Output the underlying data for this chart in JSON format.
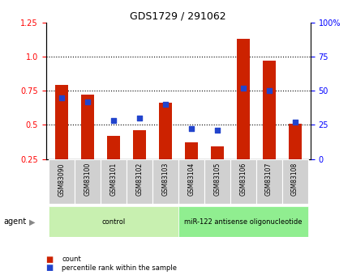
{
  "title": "GDS1729 / 291062",
  "samples": [
    "GSM83090",
    "GSM83100",
    "GSM83101",
    "GSM83102",
    "GSM83103",
    "GSM83104",
    "GSM83105",
    "GSM83106",
    "GSM83107",
    "GSM83108"
  ],
  "red_values": [
    0.79,
    0.72,
    0.42,
    0.46,
    0.66,
    0.37,
    0.34,
    1.13,
    0.97,
    0.51
  ],
  "blue_values": [
    45,
    42,
    28,
    30,
    40,
    22,
    21,
    52,
    50,
    27
  ],
  "ylim_left": [
    0.25,
    1.25
  ],
  "ylim_right": [
    0,
    100
  ],
  "yticks_left": [
    0.25,
    0.5,
    0.75,
    1.0,
    1.25
  ],
  "yticks_right": [
    0,
    25,
    50,
    75,
    100
  ],
  "ytick_labels_right": [
    "0",
    "25",
    "50",
    "75",
    "100%"
  ],
  "groups": [
    {
      "label": "control",
      "start": 0,
      "end": 5,
      "color": "#c8f0b0"
    },
    {
      "label": "miR-122 antisense oligonucleotide",
      "start": 5,
      "end": 10,
      "color": "#90ee90"
    }
  ],
  "red_color": "#cc2200",
  "blue_color": "#2244cc",
  "bar_width": 0.5,
  "agent_label": "agent",
  "legend_items": [
    {
      "label": "count",
      "color": "#cc2200"
    },
    {
      "label": "percentile rank within the sample",
      "color": "#2244cc"
    }
  ],
  "background_color": "#ffffff",
  "plot_bg_color": "#ffffff",
  "tick_label_bg": "#d0d0d0",
  "dotted_lines": [
    0.5,
    0.75,
    1.0
  ]
}
